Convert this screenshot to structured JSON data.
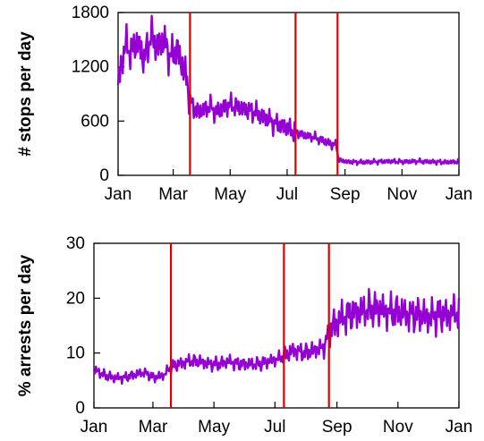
{
  "chart_data": [
    {
      "type": "line",
      "title": "",
      "xlabel": "",
      "ylabel": "# stops per day",
      "x_ticks": [
        "Jan",
        "Mar",
        "May",
        "Jul",
        "Sep",
        "Nov",
        "Jan"
      ],
      "y_ticks": [
        "0",
        "600",
        "1200",
        "1800"
      ],
      "ylim": [
        0,
        1800
      ],
      "grid": false,
      "line_color": "#9400d3",
      "vline_color": "#e00000",
      "vlines_day": [
        77,
        190,
        235
      ],
      "series": [
        {
          "x": [
            0,
            7,
            14,
            21,
            28,
            35,
            42,
            49,
            56,
            63,
            70,
            74,
            77,
            84,
            91,
            98,
            105,
            112,
            119,
            126,
            133,
            140,
            147,
            154,
            161,
            168,
            175,
            182,
            189,
            192,
            200,
            210,
            220,
            230,
            234,
            236,
            245,
            260,
            275,
            290,
            305,
            320,
            335,
            350,
            365
          ],
          "y": [
            1000,
            1440,
            1380,
            1480,
            1280,
            1550,
            1420,
            1500,
            1300,
            1400,
            1180,
            1050,
            820,
            700,
            720,
            760,
            700,
            740,
            780,
            760,
            740,
            720,
            700,
            650,
            620,
            570,
            550,
            520,
            480,
            470,
            440,
            420,
            380,
            340,
            330,
            170,
            150,
            145,
            150,
            155,
            150,
            155,
            150,
            145,
            150
          ]
        }
      ]
    },
    {
      "type": "line",
      "title": "",
      "xlabel": "",
      "ylabel": "% arrests per day",
      "x_ticks": [
        "Jan",
        "Mar",
        "May",
        "Jul",
        "Sep",
        "Nov",
        "Jan"
      ],
      "y_ticks": [
        "0",
        "10",
        "20",
        "30"
      ],
      "ylim": [
        0,
        30
      ],
      "grid": false,
      "line_color": "#9400d3",
      "vline_color": "#e00000",
      "vlines_day": [
        77,
        190,
        235
      ],
      "series": [
        {
          "x": [
            0,
            10,
            20,
            30,
            40,
            50,
            60,
            70,
            77,
            85,
            95,
            105,
            115,
            125,
            135,
            145,
            155,
            165,
            175,
            185,
            190,
            200,
            210,
            220,
            230,
            235,
            245,
            255,
            265,
            275,
            285,
            295,
            305,
            315,
            325,
            335,
            345,
            355,
            365
          ],
          "y": [
            7,
            6,
            5.5,
            5.5,
            6,
            6.5,
            5.5,
            6,
            7.5,
            8,
            8.5,
            8.5,
            8,
            8,
            8.5,
            8,
            8,
            8,
            8.5,
            9,
            9.5,
            10.5,
            10,
            10.5,
            11,
            14,
            16,
            17,
            17.5,
            18,
            18,
            17.5,
            17.5,
            17,
            17,
            16.5,
            17,
            17,
            17.5
          ]
        }
      ]
    }
  ]
}
